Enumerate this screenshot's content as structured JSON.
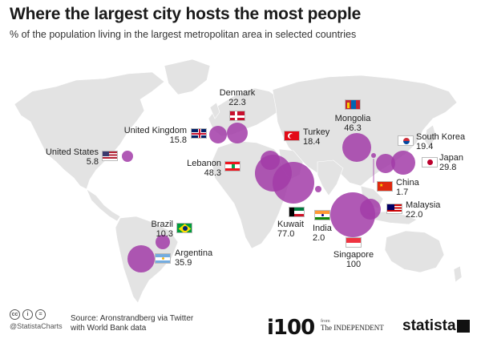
{
  "title": "Where the largest city hosts the most people",
  "subtitle": "% of the population living in the largest metropolitan area in selected countries",
  "bubble_color": "#a23ca8",
  "map_color": "#e3e3e3",
  "countries": [
    {
      "name": "Denmark",
      "value": "22.3"
    },
    {
      "name": "United Kingdom",
      "value": "15.8"
    },
    {
      "name": "Turkey",
      "value": "18.4"
    },
    {
      "name": "Mongolia",
      "value": "46.3"
    },
    {
      "name": "South Korea",
      "value": "19.4"
    },
    {
      "name": "United States",
      "value": "5.8"
    },
    {
      "name": "Japan",
      "value": "29.8"
    },
    {
      "name": "Lebanon",
      "value": "48.3"
    },
    {
      "name": "China",
      "value": "1.7"
    },
    {
      "name": "Malaysia",
      "value": "22.0"
    },
    {
      "name": "Kuwait",
      "value": "77.0"
    },
    {
      "name": "India",
      "value": "2.0"
    },
    {
      "name": "Brazil",
      "value": "10.3"
    },
    {
      "name": "Argentina",
      "value": "35.9"
    },
    {
      "name": "Singapore",
      "value": "100"
    }
  ],
  "footer": {
    "handle": "@StatistaCharts",
    "source_line1": "Source: Aronstrandberg via Twitter",
    "source_line2": "with World Bank data",
    "i100": "i100",
    "from": "from",
    "independent": "The INDEPENDENT",
    "statista": "statista"
  }
}
